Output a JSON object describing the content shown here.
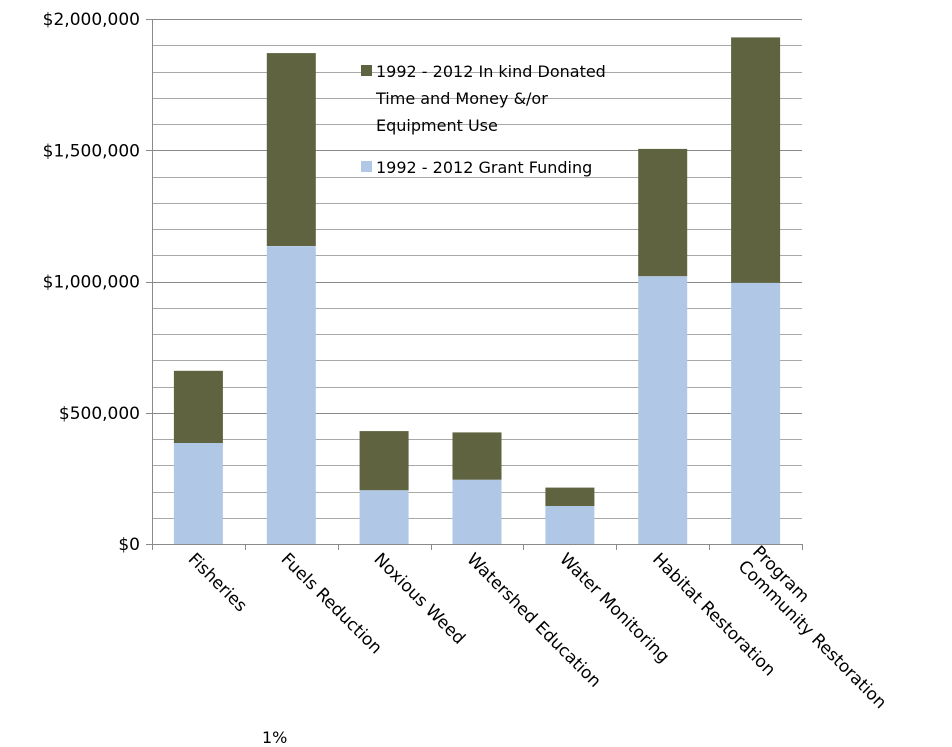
{
  "chart_data": {
    "type": "bar",
    "stacked": true,
    "categories": [
      "Fisheries",
      "Fuels Reduction",
      "Noxious Weed",
      "Watershed Education",
      "Water Monitoring",
      "Habitat Restoration",
      "Community Restoration Program"
    ],
    "series": [
      {
        "name": "1992 - 2012 Grant Funding",
        "color": "#b0c8e6",
        "values": [
          385000,
          1135000,
          205000,
          245000,
          145000,
          1020000,
          995000
        ]
      },
      {
        "name": "1992 - 2012 In kind Donated Time and Money &/or Equipment Use",
        "color": "#5f633f",
        "values": [
          275000,
          735000,
          225000,
          180000,
          70000,
          485000,
          935000
        ]
      }
    ],
    "ylim": [
      0,
      2000000
    ],
    "yticks": [
      0,
      500000,
      1000000,
      1500000,
      2000000
    ],
    "ytick_labels": [
      "$0",
      "$500,000",
      "$1,000,000",
      "$1,500,000",
      "$2,000,000"
    ],
    "minor_grid_step": 100000,
    "grid": true,
    "legend_position": "top-center",
    "legend_labels": {
      "inkind_line1": "1992 - 2012 In kind Donated",
      "inkind_line2": "Time and Money &/or",
      "inkind_line3": "Equipment Use",
      "grant": "1992 - 2012 Grant Funding"
    },
    "category_labels": [
      [
        "Fisheries"
      ],
      [
        "Fuels Reduction"
      ],
      [
        "Noxious Weed"
      ],
      [
        "Watershed Education"
      ],
      [
        "Water Monitoring"
      ],
      [
        "Habitat Restoration"
      ],
      [
        "Program",
        "Community Restoration"
      ]
    ]
  },
  "footer_fragment": "1%"
}
